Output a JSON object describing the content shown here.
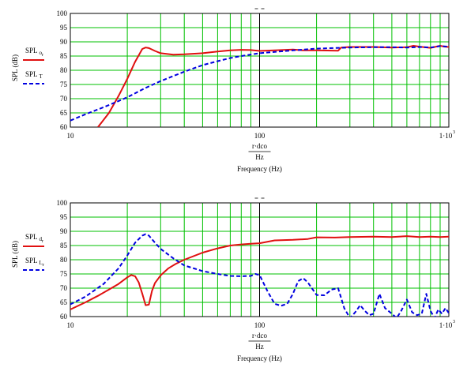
{
  "chart_data": [
    {
      "type": "line",
      "title": "",
      "xscale": "log",
      "xlim": [
        10,
        1000
      ],
      "ylim": [
        60,
        100
      ],
      "grid": true,
      "grid_color": "#00c000",
      "x_ticks": [
        "10",
        "100",
        "1·10"
      ],
      "x_tick_exponent": "3",
      "y_ticks": [
        "60",
        "65",
        "70",
        "75",
        "80",
        "85",
        "90",
        "95",
        "100"
      ],
      "xlabel_expr": "r·dco",
      "xlabel_unit": "Hz",
      "xlabel": "Frequency (Hz)",
      "ylabel": "SPL (dB)",
      "legend": [
        {
          "base": "SPL",
          "sub": "o",
          "subsub": "r",
          "color": "#e01010",
          "style": "solid"
        },
        {
          "base": "SPL",
          "sub": "T",
          "subsub": "",
          "color": "#0000e0",
          "style": "dashed"
        }
      ],
      "series": [
        {
          "color": "#e01010",
          "style": "solid",
          "x": [
            14,
            16,
            18,
            20,
            22,
            24,
            25,
            26,
            28,
            30,
            35,
            40,
            50,
            60,
            70,
            80,
            90,
            100,
            120,
            150,
            170,
            200,
            260,
            270,
            300,
            400,
            500,
            600,
            650,
            700,
            800,
            900,
            950,
            1000
          ],
          "y": [
            60,
            65,
            71,
            77,
            83,
            87.5,
            88,
            87.8,
            86.8,
            86,
            85.5,
            85.6,
            86,
            86.6,
            87,
            87.2,
            87.1,
            86.8,
            87,
            87.3,
            87,
            87,
            86.9,
            88,
            88.2,
            88.2,
            88,
            88.1,
            88.6,
            88.3,
            87.9,
            88.6,
            88.3,
            88.2
          ]
        },
        {
          "color": "#0000e0",
          "style": "dashed",
          "x": [
            10,
            12,
            15,
            18,
            20,
            25,
            30,
            40,
            50,
            60,
            70,
            80,
            100,
            150,
            200,
            300,
            400,
            500,
            600,
            700,
            800,
            900,
            1000
          ],
          "y": [
            62.3,
            64.5,
            67,
            69.2,
            70.5,
            73.8,
            76.2,
            79.5,
            81.8,
            83.2,
            84.3,
            85,
            86,
            87,
            87.6,
            88,
            88.1,
            88.1,
            88,
            88.2,
            88,
            88.5,
            88.3
          ]
        }
      ]
    },
    {
      "type": "line",
      "title": "",
      "xscale": "log",
      "xlim": [
        10,
        1000
      ],
      "ylim": [
        60,
        100
      ],
      "grid": true,
      "grid_color": "#00c000",
      "x_ticks": [
        "10",
        "100",
        "1·10"
      ],
      "x_tick_exponent": "3",
      "y_ticks": [
        "60",
        "65",
        "70",
        "75",
        "80",
        "85",
        "90",
        "95",
        "100"
      ],
      "xlabel_expr": "r·dco",
      "xlabel_unit": "Hz",
      "xlabel": "Frequency (Hz)",
      "ylabel": "SPL (dB)",
      "legend": [
        {
          "base": "SPL",
          "sub": "d",
          "subsub": "r",
          "color": "#e01010",
          "style": "solid"
        },
        {
          "base": "SPL",
          "sub": "L",
          "subsub": "r",
          "color": "#0000e0",
          "style": "dashed"
        }
      ],
      "series": [
        {
          "color": "#e01010",
          "style": "solid",
          "x": [
            10,
            12,
            14,
            16,
            18,
            20,
            21,
            22,
            23,
            24,
            25,
            26,
            27,
            28,
            30,
            33,
            36,
            40,
            50,
            60,
            70,
            80,
            90,
            100,
            120,
            150,
            180,
            200,
            250,
            300,
            400,
            500,
            600,
            700,
            800,
            900,
            1000
          ],
          "y": [
            62.5,
            65,
            67.3,
            69.5,
            71.5,
            73.8,
            74.6,
            74.2,
            72,
            68,
            64,
            64.2,
            69,
            71.8,
            74.5,
            77,
            78.5,
            80,
            82.5,
            84,
            85,
            85.4,
            85.6,
            85.8,
            86.8,
            87,
            87.3,
            87.9,
            87.8,
            88,
            88.1,
            88,
            88.3,
            88,
            88.1,
            88,
            88.1
          ]
        },
        {
          "color": "#0000e0",
          "style": "dashed",
          "x": [
            10,
            12,
            15,
            18,
            20,
            22,
            24,
            25,
            26,
            28,
            30,
            35,
            40,
            50,
            60,
            70,
            80,
            90,
            95,
            100,
            110,
            120,
            130,
            140,
            150,
            160,
            170,
            180,
            200,
            220,
            240,
            260,
            280,
            300,
            320,
            340,
            360,
            380,
            400,
            430,
            460,
            500,
            530,
            560,
            600,
            640,
            680,
            720,
            760,
            800,
            840,
            880,
            920,
            960,
            1000
          ],
          "y": [
            64.3,
            67,
            71.5,
            77,
            81.5,
            86,
            88.5,
            89,
            88.5,
            86,
            83.8,
            80.5,
            78,
            76,
            75,
            74.3,
            74.2,
            74.3,
            75,
            74.6,
            69,
            64.5,
            63.8,
            64.5,
            68,
            72.5,
            73.5,
            72,
            67.6,
            67.5,
            69.5,
            70,
            63,
            59.5,
            61.5,
            64,
            62,
            60.5,
            61,
            68,
            63,
            61,
            59.5,
            62,
            66,
            61.5,
            60.5,
            61,
            68,
            62,
            59.5,
            62.5,
            61,
            63,
            61.2
          ]
        }
      ]
    }
  ]
}
